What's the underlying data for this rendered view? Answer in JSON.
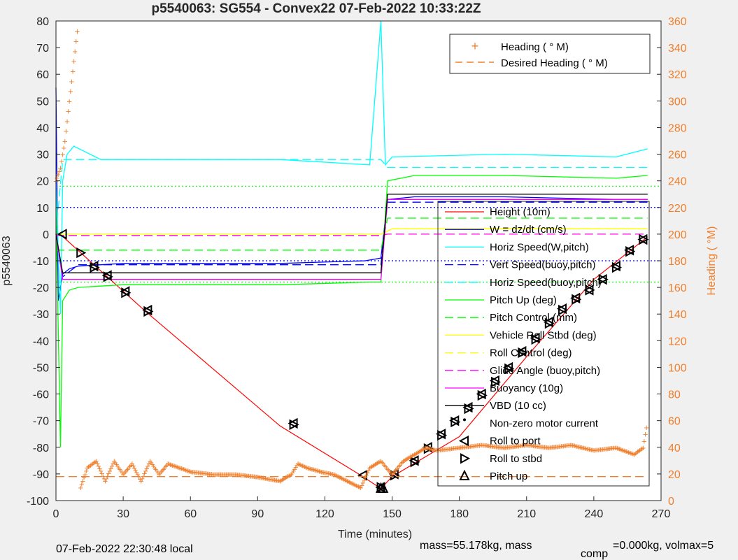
{
  "chart_data": {
    "type": "line",
    "title": "p5540063: SG554 - Convex22 07-Feb-2022 10:33:22Z",
    "xlabel": "Time (minutes)",
    "ylabel": "p5540063",
    "ylabel_right": "Heading (  °M)",
    "xlim": [
      0,
      270
    ],
    "ylim": [
      -100,
      80
    ],
    "ylim_right": [
      0,
      360
    ],
    "x_ticks": [
      "0",
      "30",
      "60",
      "90",
      "120",
      "150",
      "180",
      "210",
      "240",
      "270"
    ],
    "y_ticks": [
      "-100",
      "-90",
      "-80",
      "-70",
      "-60",
      "-50",
      "-40",
      "-30",
      "-20",
      "-10",
      "0",
      "10",
      "20",
      "30",
      "40",
      "50",
      "60",
      "70",
      "80"
    ],
    "y_right_ticks": [
      "0",
      "20",
      "40",
      "60",
      "80",
      "100",
      "120",
      "140",
      "160",
      "180",
      "200",
      "220",
      "240",
      "260",
      "280",
      "300",
      "320",
      "340",
      "360"
    ],
    "grid": false,
    "legend_heading": {
      "placement": "top-right",
      "entries": [
        "Heading (  ° M)",
        "Desired Heading (    ° M)"
      ]
    },
    "legend_main": {
      "placement": "right",
      "entries": [
        "Height (10m)",
        "W = dz/dt (cm/s)",
        "Horiz Speed(W,pitch)",
        "Vert Speed(buoy,pitch)",
        "Horiz Speed(buoy,pitch)",
        "Pitch Up (deg)",
        "Pitch Control (mm)",
        "Vehicle Roll Stbd (deg)",
        "Roll Control (deg)",
        "Glide Angle (buoy,pitch)",
        "Buoyancy (10g)",
        "VBD (10 cc)",
        "Non-zero motor current",
        "Roll to port",
        "Roll to stbd",
        "Pitch up"
      ]
    },
    "series": [
      {
        "name": "Height (10m)",
        "x": [
          0,
          2.5,
          40,
          100,
          137,
          145,
          150,
          180,
          210,
          240,
          264
        ],
        "y": [
          0,
          -0.5,
          -29,
          -72,
          -91,
          -95.5,
          -91,
          -76,
          -46,
          -17,
          -1
        ]
      },
      {
        "name": "W = dz/dt (cm/s)",
        "x": [
          0,
          1,
          3,
          6,
          10,
          30,
          100,
          138,
          145,
          148,
          160,
          200,
          250,
          264
        ],
        "y": [
          55,
          -25,
          -15,
          -13,
          -12,
          -11,
          -11,
          -10,
          -9,
          13,
          14,
          14,
          13,
          13
        ]
      },
      {
        "name": "Horiz Speed(W,pitch)",
        "x": [
          0,
          2,
          3,
          5,
          8,
          20,
          60,
          100,
          140,
          145,
          147,
          150,
          200,
          250,
          264
        ],
        "y": [
          20,
          -30,
          20,
          30,
          33,
          28,
          28,
          28,
          26,
          80,
          26,
          29,
          30,
          29,
          32
        ]
      },
      {
        "name": "Vert Speed(buoy,pitch)",
        "x": [
          0,
          3,
          10,
          145,
          148,
          264
        ],
        "y": [
          0,
          -16,
          -11.5,
          -11.5,
          12,
          12
        ]
      },
      {
        "name": "Horiz Speed(buoy,pitch)",
        "x": [
          0,
          3,
          10,
          145,
          148,
          264
        ],
        "y": [
          0,
          28,
          28,
          28,
          25,
          25
        ]
      },
      {
        "name": "Pitch Up (deg)",
        "x": [
          0,
          2,
          3,
          6,
          10,
          30,
          100,
          140,
          145,
          148,
          160,
          200,
          250,
          264
        ],
        "y": [
          10,
          -80,
          -25,
          -21,
          -20,
          -19,
          -19,
          -18,
          -18,
          20,
          22,
          22,
          21,
          22
        ]
      },
      {
        "name": "Pitch Control (mm)",
        "x": [
          0,
          3,
          145,
          148,
          264
        ],
        "y": [
          -6,
          -6,
          -6,
          6,
          6
        ]
      },
      {
        "name": "Vehicle Roll Stbd (deg)",
        "x": [
          0,
          3,
          10,
          145,
          150,
          264
        ],
        "y": [
          0,
          0,
          0,
          0,
          2,
          2
        ]
      },
      {
        "name": "Roll Control (deg)",
        "x": [
          0,
          3,
          145,
          148,
          264
        ],
        "y": [
          0,
          0,
          0,
          0,
          0
        ]
      },
      {
        "name": "Glide Angle (buoy,pitch)",
        "x": [
          0,
          3,
          145,
          148,
          264
        ],
        "y": [
          -0.5,
          -0.5,
          -0.5,
          0,
          0
        ]
      },
      {
        "name": "Buoyancy (10g)",
        "x": [
          0,
          3,
          145,
          148,
          264
        ],
        "y": [
          0,
          -17,
          -17,
          13,
          13
        ]
      },
      {
        "name": "VBD (10 cc)",
        "x": [
          0,
          3,
          145,
          148,
          264
        ],
        "y": [
          0,
          -14.5,
          -14.5,
          15,
          15
        ]
      },
      {
        "name": "Roll to port",
        "x": [
          3,
          17,
          23,
          31,
          41,
          106,
          137,
          145,
          151,
          160,
          166,
          172,
          178,
          184,
          190,
          196,
          202,
          208,
          214,
          220,
          226,
          232,
          238,
          244,
          250,
          256,
          262
        ],
        "y": [
          0,
          -12,
          -15.5,
          -21.5,
          -28.5,
          -71,
          -90.5,
          -95,
          -90,
          -85,
          -80,
          -75,
          -70,
          -65,
          -60,
          -55,
          -50,
          -44,
          -39,
          -33,
          -28,
          -24,
          -21,
          -17,
          -12,
          -6,
          -2
        ]
      },
      {
        "name": "Roll to stbd",
        "x": [
          11,
          17,
          23,
          31,
          41,
          106,
          145,
          151,
          160,
          166,
          172,
          178,
          184,
          190,
          196,
          202,
          208,
          214,
          220,
          226,
          232,
          238,
          244,
          250,
          256,
          262
        ],
        "y": [
          -7,
          -12.5,
          -16,
          -22,
          -29,
          -71.5,
          -95,
          -90.5,
          -85.5,
          -80.5,
          -75.5,
          -70.5,
          -65.5,
          -60.5,
          -55.5,
          -50.5,
          -44.5,
          -39.5,
          -33.5,
          -28.5,
          -24.5,
          -21,
          -17,
          -12.5,
          -6.5,
          -2
        ]
      },
      {
        "name": "Pitch up",
        "x": [
          145,
          146
        ],
        "y": [
          -95.5,
          -95.5
        ]
      },
      {
        "name": "Heading (  ° M)",
        "axis": "right",
        "x": [
          0,
          2,
          4,
          6,
          8,
          10,
          11,
          14,
          18,
          22,
          26,
          30,
          34,
          38,
          42,
          46,
          50,
          60,
          70,
          80,
          90,
          100,
          105,
          108,
          112,
          118,
          124,
          130,
          136,
          140,
          145,
          150,
          155,
          160,
          165,
          170,
          180,
          190,
          200,
          210,
          220,
          230,
          240,
          250,
          258,
          262,
          264
        ],
        "y": [
          240,
          250,
          270,
          300,
          330,
          360,
          10,
          25,
          30,
          15,
          30,
          20,
          28,
          15,
          30,
          20,
          28,
          22,
          20,
          20,
          18,
          15,
          20,
          28,
          25,
          22,
          20,
          15,
          10,
          25,
          30,
          20,
          30,
          35,
          40,
          38,
          40,
          42,
          40,
          42,
          40,
          42,
          38,
          40,
          35,
          40,
          60
        ]
      },
      {
        "name": "Desired Heading (    ° M)",
        "axis": "right",
        "x": [
          0,
          264
        ],
        "y": [
          18,
          18
        ]
      }
    ],
    "reference_lines": {
      "blue_dotted": [
        10,
        -10
      ],
      "green_dotted": [
        18,
        -18
      ]
    },
    "colors": {
      "height": "#ff0000",
      "w": "#0000ff",
      "horiz": "#00ffff",
      "pitch": "#00ff00",
      "roll": "#ffff00",
      "glide": "#ff00ff",
      "vbd": "#000000",
      "heading": "#f07f2c"
    }
  },
  "footer": {
    "local_time": "07-Feb-2022 22:30:48 local",
    "mass_text": "mass=55.178kg, mass",
    "comp_sub": "comp",
    "comp_tail": "=0.000kg, volmax=5"
  }
}
